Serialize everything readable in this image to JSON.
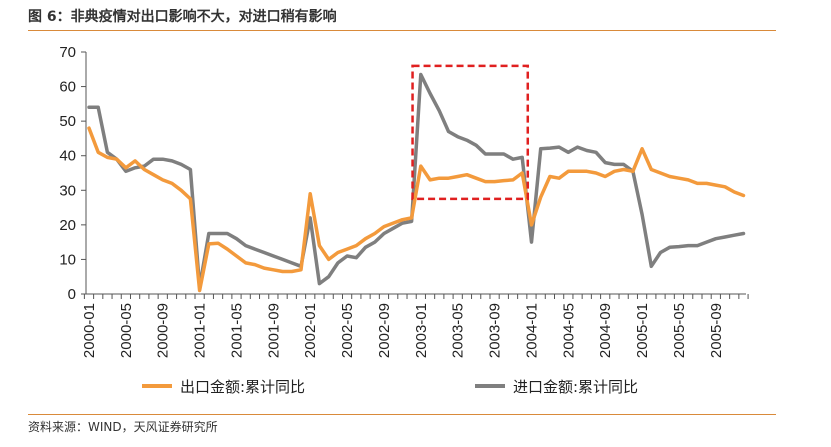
{
  "title": "图 6：非典疫情对出口影响不大，对进口稍有影响",
  "source": "资料来源：WIND，天风证券研究所",
  "colors": {
    "export": "#f39a3c",
    "import": "#7f7f7f",
    "highlight": "#e02020",
    "rule": "#d98a3a"
  },
  "chart_data": {
    "type": "line",
    "title": "",
    "xlabel": "",
    "ylabel": "",
    "ylim": [
      0,
      70
    ],
    "yticks": [
      0,
      10,
      20,
      30,
      40,
      50,
      60,
      70
    ],
    "xtick_labels": [
      "2000-01",
      "2000-05",
      "2000-09",
      "2001-01",
      "2001-05",
      "2001-09",
      "2002-01",
      "2002-05",
      "2002-09",
      "2003-01",
      "2003-05",
      "2003-09",
      "2004-01",
      "2004-05",
      "2004-09",
      "2005-01",
      "2005-05",
      "2005-09"
    ],
    "grid": false,
    "legend_position": "bottom",
    "annotation": "red dashed box highlighting 2003-01 to 2003-12",
    "series": [
      {
        "name": "出口金额:累计同比",
        "values": [
          48,
          41,
          39.5,
          39,
          36.5,
          38.5,
          36,
          34.5,
          33,
          32,
          30,
          27.5,
          1,
          14.5,
          14.7,
          13,
          11,
          9,
          8.5,
          7.5,
          7,
          6.5,
          6.5,
          7,
          29,
          14,
          10,
          12,
          13,
          14,
          16,
          17.5,
          19.5,
          20.5,
          21.5,
          22,
          37,
          33,
          33.5,
          33.5,
          34,
          34.5,
          33.5,
          32.5,
          32.5,
          32.8,
          33,
          35,
          20,
          28,
          34,
          33.5,
          35.5,
          35.5,
          35.5,
          35,
          34,
          35.5,
          36,
          35.5,
          42,
          36,
          35,
          34,
          33.5,
          33,
          32,
          32,
          31.5,
          31,
          29.5,
          28.5
        ]
      },
      {
        "name": "进口金额:累计同比",
        "values": [
          54,
          54,
          41,
          39,
          35.5,
          36.5,
          37,
          39,
          39,
          38.5,
          37.5,
          36,
          2,
          17.5,
          17.5,
          17.5,
          16,
          14,
          13,
          12,
          11,
          10,
          9,
          8,
          22,
          3,
          5,
          9,
          11,
          10.5,
          13.5,
          15,
          17.5,
          19,
          20.5,
          21,
          63.5,
          58,
          53,
          47,
          45.5,
          44.5,
          43,
          40.5,
          40.5,
          40.5,
          39,
          39.5,
          15,
          42,
          42.2,
          42.5,
          41,
          42.5,
          41.5,
          41,
          38,
          37.5,
          37.5,
          35.5,
          23,
          8,
          12,
          13.5,
          13.7,
          14,
          14,
          15,
          16,
          16.5,
          17,
          17.5
        ]
      }
    ]
  }
}
